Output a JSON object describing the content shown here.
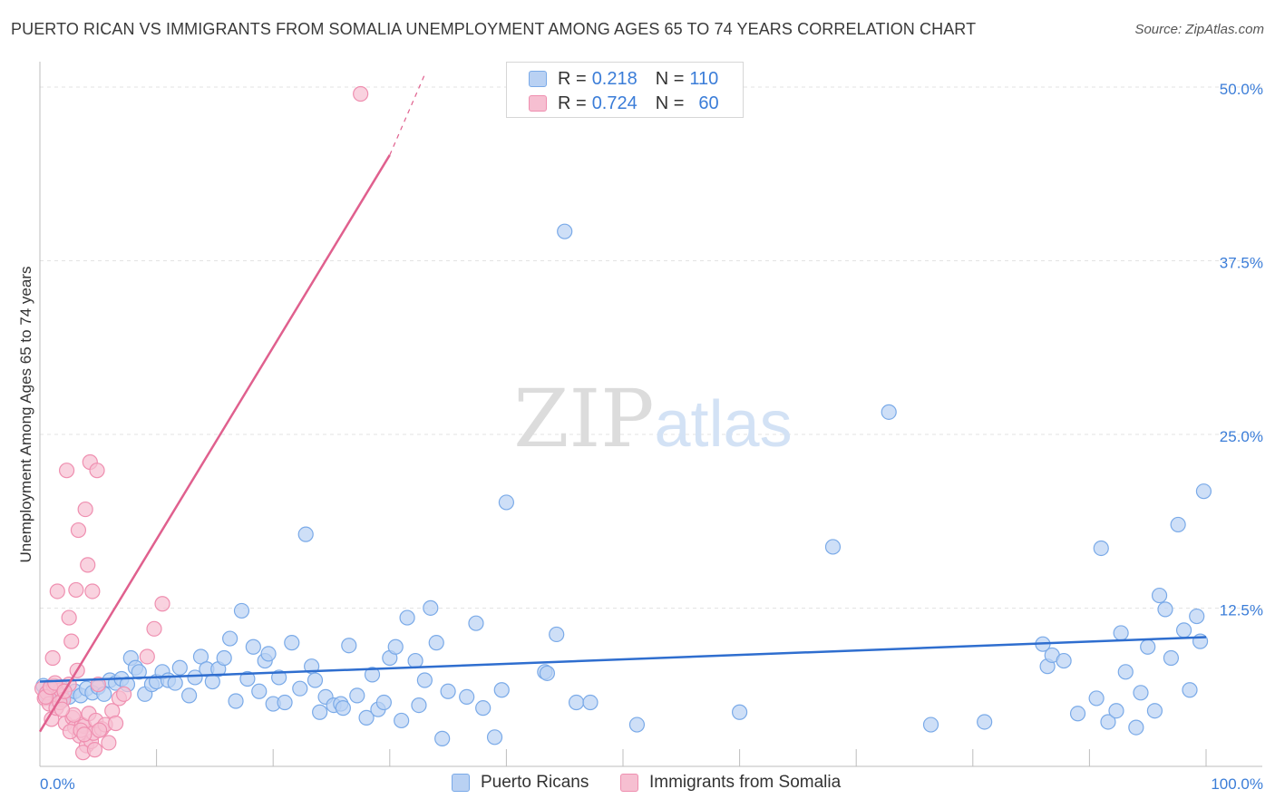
{
  "chart_data": {
    "type": "scatter",
    "title": "PUERTO RICAN VS IMMIGRANTS FROM SOMALIA UNEMPLOYMENT AMONG AGES 65 TO 74 YEARS CORRELATION CHART",
    "source": "Source: ZipAtlas.com",
    "watermark": "ZIPatlas",
    "xlabel": "",
    "ylabel": "Unemployment Among Ages 65 to 74 years",
    "xlim": [
      0,
      100
    ],
    "ylim": [
      0,
      50
    ],
    "x_tick_labels": [
      "0.0%",
      "100.0%"
    ],
    "y_ticks": [
      12.5,
      25.0,
      37.5,
      50.0
    ],
    "y_tick_labels": [
      "12.5%",
      "25.0%",
      "37.5%",
      "50.0%"
    ],
    "grid": true,
    "legend_position": "top-center",
    "stats": [
      {
        "r_label": "R =",
        "r": "0.218",
        "n_label": "N =",
        "n": "110"
      },
      {
        "r_label": "R =",
        "r": "0.724",
        "n_label": "N =",
        "n": "60"
      }
    ],
    "series": [
      {
        "name": "Puerto Ricans",
        "color": "#7aaae8",
        "fill": "#b9d1f3",
        "line_color": "#2f6ecf",
        "trend": {
          "x0": 0,
          "y0": 6.1,
          "x1": 100,
          "y1": 9.3
        },
        "points": [
          [
            0.3,
            5.8
          ],
          [
            0.5,
            5.2
          ],
          [
            0.8,
            5.5
          ],
          [
            1,
            4.9
          ],
          [
            1.3,
            5.6
          ],
          [
            1.6,
            5.1
          ],
          [
            1.8,
            5.7
          ],
          [
            2,
            4.8
          ],
          [
            2.2,
            5.3
          ],
          [
            2.5,
            5.0
          ],
          [
            3,
            5.4
          ],
          [
            3.5,
            5.1
          ],
          [
            4,
            5.6
          ],
          [
            4.5,
            5.3
          ],
          [
            5,
            5.7
          ],
          [
            5.5,
            5.2
          ],
          [
            6,
            6.2
          ],
          [
            6.5,
            6.0
          ],
          [
            7,
            6.3
          ],
          [
            7.5,
            5.9
          ],
          [
            7.8,
            7.8
          ],
          [
            8.2,
            7.1
          ],
          [
            8.5,
            6.8
          ],
          [
            9,
            5.2
          ],
          [
            9.6,
            5.9
          ],
          [
            10,
            6.1
          ],
          [
            10.5,
            6.8
          ],
          [
            11,
            6.2
          ],
          [
            11.6,
            6.0
          ],
          [
            12,
            7.1
          ],
          [
            12.8,
            5.1
          ],
          [
            13.3,
            6.4
          ],
          [
            13.8,
            7.9
          ],
          [
            14.3,
            7.0
          ],
          [
            14.8,
            6.1
          ],
          [
            15.3,
            7.0
          ],
          [
            15.8,
            7.8
          ],
          [
            16.3,
            9.2
          ],
          [
            16.8,
            4.7
          ],
          [
            17.3,
            11.2
          ],
          [
            17.8,
            6.3
          ],
          [
            18.3,
            8.6
          ],
          [
            18.8,
            5.4
          ],
          [
            19.3,
            7.6
          ],
          [
            19.6,
            8.1
          ],
          [
            20,
            4.5
          ],
          [
            20.5,
            6.4
          ],
          [
            21,
            4.6
          ],
          [
            21.6,
            8.9
          ],
          [
            22.3,
            5.6
          ],
          [
            22.8,
            16.7
          ],
          [
            23.3,
            7.2
          ],
          [
            23.6,
            6.2
          ],
          [
            24,
            3.9
          ],
          [
            24.5,
            5.0
          ],
          [
            25.2,
            4.4
          ],
          [
            25.8,
            4.5
          ],
          [
            26,
            4.2
          ],
          [
            26.5,
            8.7
          ],
          [
            27.2,
            5.1
          ],
          [
            28,
            3.5
          ],
          [
            28.5,
            6.6
          ],
          [
            29,
            4.1
          ],
          [
            29.5,
            4.6
          ],
          [
            30,
            7.8
          ],
          [
            30.5,
            8.6
          ],
          [
            31,
            3.3
          ],
          [
            31.5,
            10.7
          ],
          [
            32.2,
            7.6
          ],
          [
            32.5,
            4.4
          ],
          [
            33,
            6.2
          ],
          [
            33.5,
            11.4
          ],
          [
            34,
            8.9
          ],
          [
            34.5,
            2.0
          ],
          [
            35,
            5.4
          ],
          [
            36.6,
            5.0
          ],
          [
            37.4,
            10.3
          ],
          [
            38,
            4.2
          ],
          [
            39,
            2.1
          ],
          [
            39.6,
            5.5
          ],
          [
            40,
            19.0
          ],
          [
            43.3,
            6.8
          ],
          [
            43.5,
            6.7
          ],
          [
            44.3,
            9.5
          ],
          [
            45,
            38.5
          ],
          [
            46,
            4.6
          ],
          [
            47.2,
            4.6
          ],
          [
            51.2,
            3.0
          ],
          [
            60,
            3.9
          ],
          [
            68,
            15.8
          ],
          [
            72.8,
            25.5
          ],
          [
            76.4,
            3.0
          ],
          [
            81,
            3.2
          ],
          [
            86,
            8.8
          ],
          [
            86.4,
            7.2
          ],
          [
            86.8,
            8.0
          ],
          [
            87.8,
            7.6
          ],
          [
            89,
            3.8
          ],
          [
            90.6,
            4.9
          ],
          [
            91,
            15.7
          ],
          [
            91.6,
            3.2
          ],
          [
            92.3,
            4.0
          ],
          [
            92.7,
            9.6
          ],
          [
            93.1,
            6.8
          ],
          [
            94,
            2.8
          ],
          [
            94.4,
            5.3
          ],
          [
            95,
            8.6
          ],
          [
            95.6,
            4.0
          ],
          [
            96,
            12.3
          ],
          [
            96.5,
            11.3
          ],
          [
            97,
            7.8
          ],
          [
            97.6,
            17.4
          ],
          [
            98.1,
            9.8
          ],
          [
            98.6,
            5.5
          ],
          [
            99.2,
            10.8
          ],
          [
            99.5,
            9.0
          ],
          [
            99.8,
            19.8
          ]
        ]
      },
      {
        "name": "Immigrants from Somalia",
        "color": "#ef8fb0",
        "fill": "#f6bfd1",
        "line_color": "#e0608e",
        "trend": {
          "x0": 0,
          "y0": 2.5,
          "x1": 30,
          "y1": 44.0
        },
        "trend_dashed": {
          "x0": 30,
          "y0": 44.0,
          "x1": 33,
          "y1": 49.8
        },
        "points": [
          [
            0.2,
            5.6
          ],
          [
            0.4,
            4.9
          ],
          [
            0.6,
            5.3
          ],
          [
            0.8,
            4.5
          ],
          [
            1.0,
            3.4
          ],
          [
            1.2,
            5.8
          ],
          [
            1.4,
            4.2
          ],
          [
            1.6,
            5.1
          ],
          [
            1.8,
            5.5
          ],
          [
            2.0,
            4.8
          ],
          [
            2.2,
            3.1
          ],
          [
            2.5,
            5.9
          ],
          [
            2.8,
            3.5
          ],
          [
            3.0,
            2.8
          ],
          [
            3.2,
            6.9
          ],
          [
            3.4,
            2.2
          ],
          [
            3.6,
            3.0
          ],
          [
            3.8,
            2.9
          ],
          [
            4.0,
            1.5
          ],
          [
            4.2,
            3.8
          ],
          [
            4.4,
            1.8
          ],
          [
            4.6,
            2.4
          ],
          [
            4.8,
            3.3
          ],
          [
            5.0,
            5.9
          ],
          [
            5.3,
            2.7
          ],
          [
            5.6,
            3.0
          ],
          [
            5.9,
            1.7
          ],
          [
            6.2,
            4.0
          ],
          [
            6.5,
            3.1
          ],
          [
            6.8,
            4.9
          ],
          [
            7.2,
            5.2
          ],
          [
            1.1,
            7.8
          ],
          [
            1.5,
            12.6
          ],
          [
            2.3,
            21.3
          ],
          [
            2.5,
            10.7
          ],
          [
            2.7,
            9.0
          ],
          [
            3.1,
            12.7
          ],
          [
            3.3,
            17.0
          ],
          [
            3.9,
            18.5
          ],
          [
            4.1,
            14.5
          ],
          [
            4.3,
            21.9
          ],
          [
            4.5,
            12.6
          ],
          [
            4.9,
            21.3
          ],
          [
            9.2,
            7.9
          ],
          [
            9.8,
            9.9
          ],
          [
            10.5,
            11.7
          ],
          [
            27.5,
            48.4
          ],
          [
            0.5,
            5.0
          ],
          [
            0.9,
            5.7
          ],
          [
            1.3,
            6.0
          ],
          [
            1.7,
            4.6
          ],
          [
            2.1,
            5.4
          ],
          [
            2.6,
            2.5
          ],
          [
            2.9,
            3.7
          ],
          [
            3.5,
            2.6
          ],
          [
            3.7,
            1.0
          ],
          [
            4.7,
            1.2
          ],
          [
            5.1,
            2.6
          ],
          [
            1.9,
            4.1
          ],
          [
            3.8,
            2.3
          ]
        ]
      }
    ]
  }
}
